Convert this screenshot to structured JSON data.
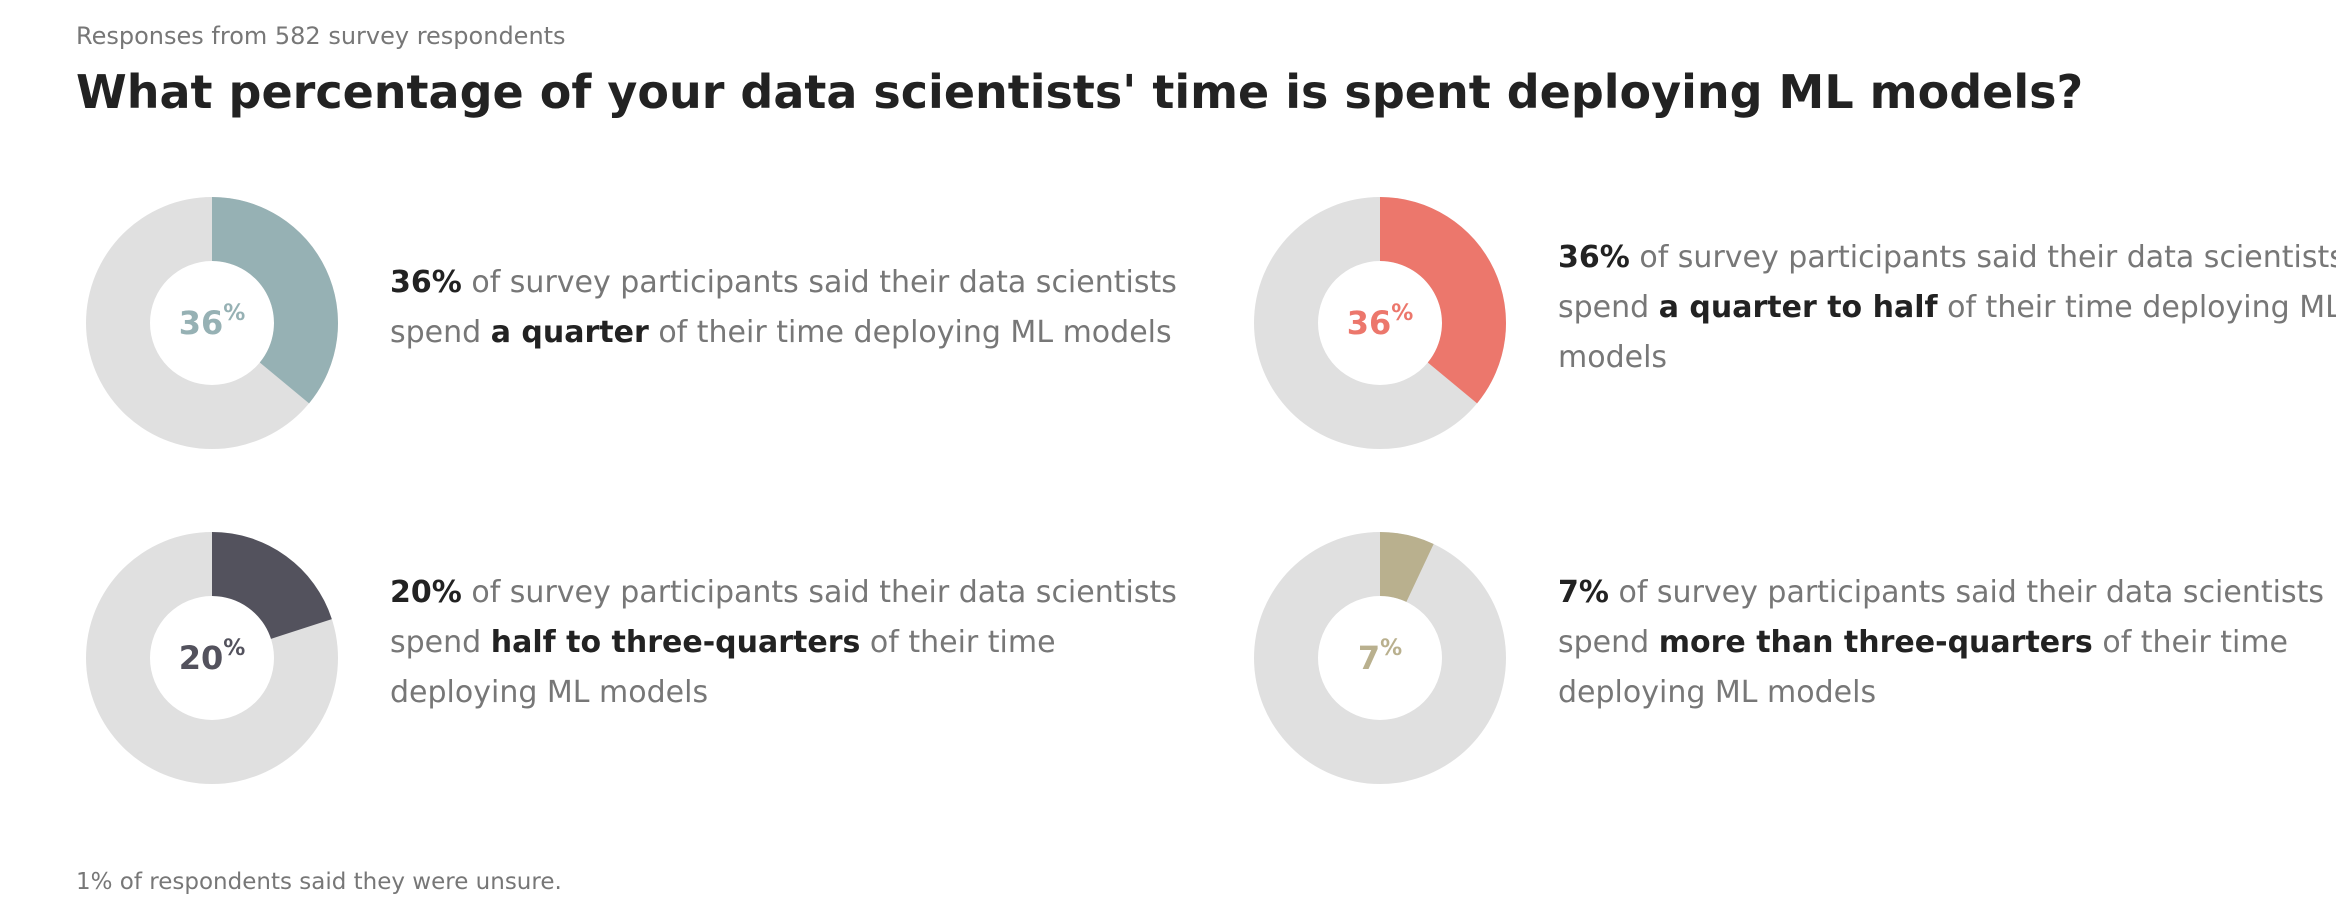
{
  "header": {
    "subtitle": "Responses from 582 survey respondents",
    "title": "What percentage of your data scientists' time is spent deploying ML models?"
  },
  "chart_data": {
    "type": "pie",
    "title": "What percentage of your data scientists' time is spent deploying ML models?",
    "subtitle": "Responses from 582 survey respondents",
    "track_color": "#e0e0e0",
    "pct_symbol": "%",
    "items": [
      {
        "value": 36,
        "value_label": "36",
        "color": "#96b1b4",
        "lead": "36%",
        "text_before": " of survey participants said their data scientists spend ",
        "emphasis": "a quarter",
        "text_after": " of their time deploying ML models"
      },
      {
        "value": 36,
        "value_label": "36",
        "color": "#ec776c",
        "lead": "36%",
        "text_before": " of survey participants said their data scientists spend ",
        "emphasis": "a quarter to half",
        "text_after": " of their time deploying ML models"
      },
      {
        "value": 20,
        "value_label": "20",
        "color": "#53525d",
        "lead": "20%",
        "text_before": " of survey participants said their data scientists spend ",
        "emphasis": "half to three-quarters",
        "text_after": " of their time deploying ML models"
      },
      {
        "value": 7,
        "value_label": "7",
        "color": "#b9b08e",
        "lead": "7%",
        "text_before": " of survey participants said their data scientists spend ",
        "emphasis": "more than three-quarters",
        "text_after": " of their time deploying ML models"
      }
    ],
    "footnote": "1% of respondents said they were unsure."
  }
}
